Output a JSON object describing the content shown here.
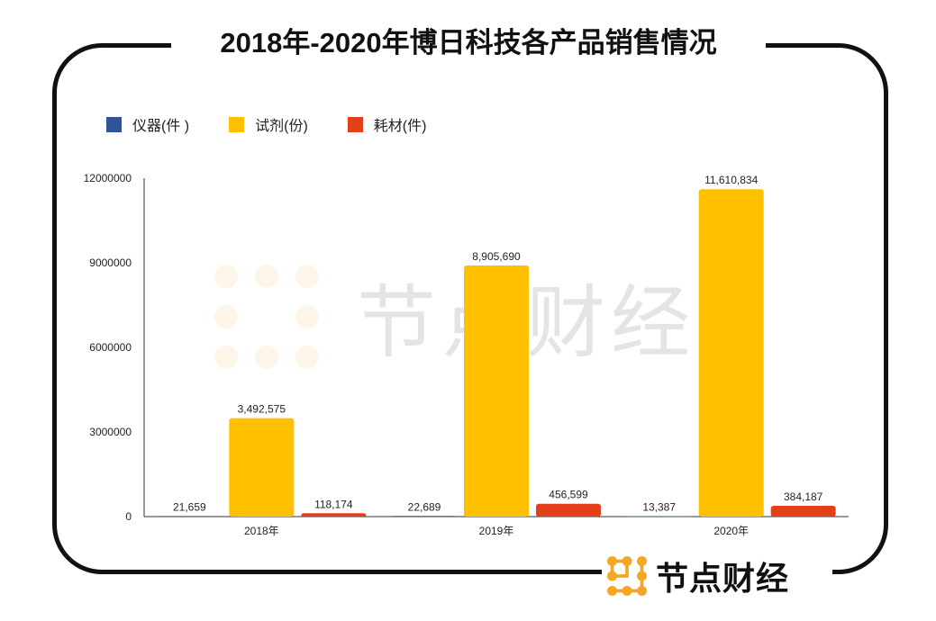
{
  "chart_data": {
    "type": "bar",
    "title": "2018年-2020年博日科技各产品销售情况",
    "categories": [
      "2018年",
      "2019年",
      "2020年"
    ],
    "series": [
      {
        "name": "仪器(件 )",
        "color": "#2f5597",
        "values": [
          21659,
          22689,
          13387
        ],
        "labels": [
          "21,659",
          "22,689",
          "13,387"
        ]
      },
      {
        "name": "试剂(份)",
        "color": "#ffc000",
        "values": [
          3492575,
          8905690,
          11610834
        ],
        "labels": [
          "3,492,575",
          "8,905,690",
          "11,610,834"
        ]
      },
      {
        "name": "耗材(件)",
        "color": "#e3401a",
        "values": [
          118174,
          456599,
          384187
        ],
        "labels": [
          "118,174",
          "456,599",
          "384,187"
        ]
      }
    ],
    "yticks": [
      "0",
      "3000000",
      "6000000",
      "9000000",
      "12000000"
    ],
    "ylim": [
      0,
      12000000
    ],
    "grid": false,
    "legend": "top-left"
  },
  "brand": {
    "name": "节点财经",
    "color": "#f5a623"
  }
}
